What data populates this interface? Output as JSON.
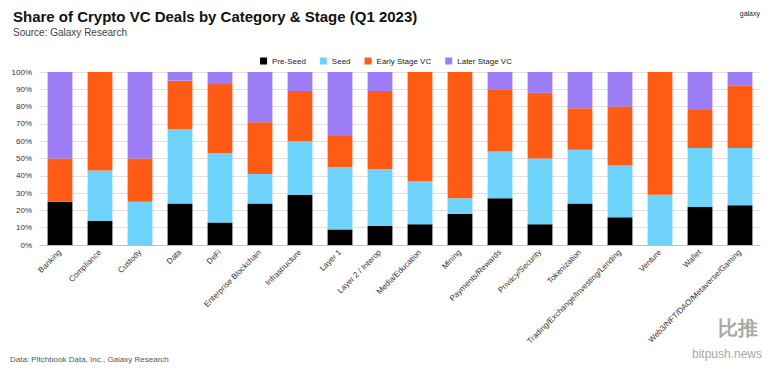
{
  "chart_data": {
    "type": "bar",
    "title": "Share of Crypto VC Deals by Category & Stage (Q1 2023)",
    "subtitle": "Source: Galaxy Research",
    "footnote": "Data: Pitchbook Data, Inc., Galaxy Research",
    "annotations": [
      "galaxy",
      "比推",
      "bitpush.news"
    ],
    "categories": [
      "Banking",
      "Compliance",
      "Custody",
      "Data",
      "DeFi",
      "Enterprise Blockchain",
      "Infrastructure",
      "Layer 1",
      "Layer 2 / Interop",
      "Media/Education",
      "Mining",
      "Payments/Rewards",
      "Privacy/Security",
      "Tokenization",
      "Trading/Exchange/Investing/Lending",
      "Venture",
      "Wallet",
      "Web3/NFT/DAO/Metaverse/Gaming"
    ],
    "series": [
      {
        "name": "Pre-Seed",
        "color": "#000000",
        "values": [
          25,
          14,
          0,
          24,
          13,
          24,
          29,
          9,
          11,
          12,
          18,
          27,
          12,
          24,
          16,
          0,
          22,
          23
        ]
      },
      {
        "name": "Seed",
        "color": "#6dd3fa",
        "values": [
          0,
          29,
          25,
          43,
          40,
          17,
          31,
          36,
          33,
          25,
          9,
          27,
          38,
          31,
          30,
          29,
          34,
          33
        ]
      },
      {
        "name": "Early Stage VC",
        "color": "#ff5b14",
        "values": [
          25,
          57,
          25,
          28,
          40,
          30,
          29,
          18,
          45,
          63,
          73,
          36,
          38,
          24,
          34,
          71,
          22,
          36
        ]
      },
      {
        "name": "Later Stage VC",
        "color": "#9d7df5",
        "values": [
          50,
          0,
          50,
          5,
          7,
          29,
          11,
          37,
          11,
          0,
          0,
          10,
          12,
          21,
          20,
          0,
          22,
          8
        ]
      }
    ],
    "stacked": true,
    "legend": "top",
    "grid": true,
    "ylim": [
      0,
      100
    ],
    "yticks": [
      {
        "value": 0,
        "label": "0%"
      },
      {
        "value": 10,
        "label": "10%"
      },
      {
        "value": 20,
        "label": "20%"
      },
      {
        "value": 30,
        "label": "30%"
      },
      {
        "value": 40,
        "label": "40%"
      },
      {
        "value": 50,
        "label": "50%"
      },
      {
        "value": 60,
        "label": "60%"
      },
      {
        "value": 70,
        "label": "70%"
      },
      {
        "value": 80,
        "label": "80%"
      },
      {
        "value": 90,
        "label": "90%"
      },
      {
        "value": 100,
        "label": "100%"
      }
    ]
  }
}
